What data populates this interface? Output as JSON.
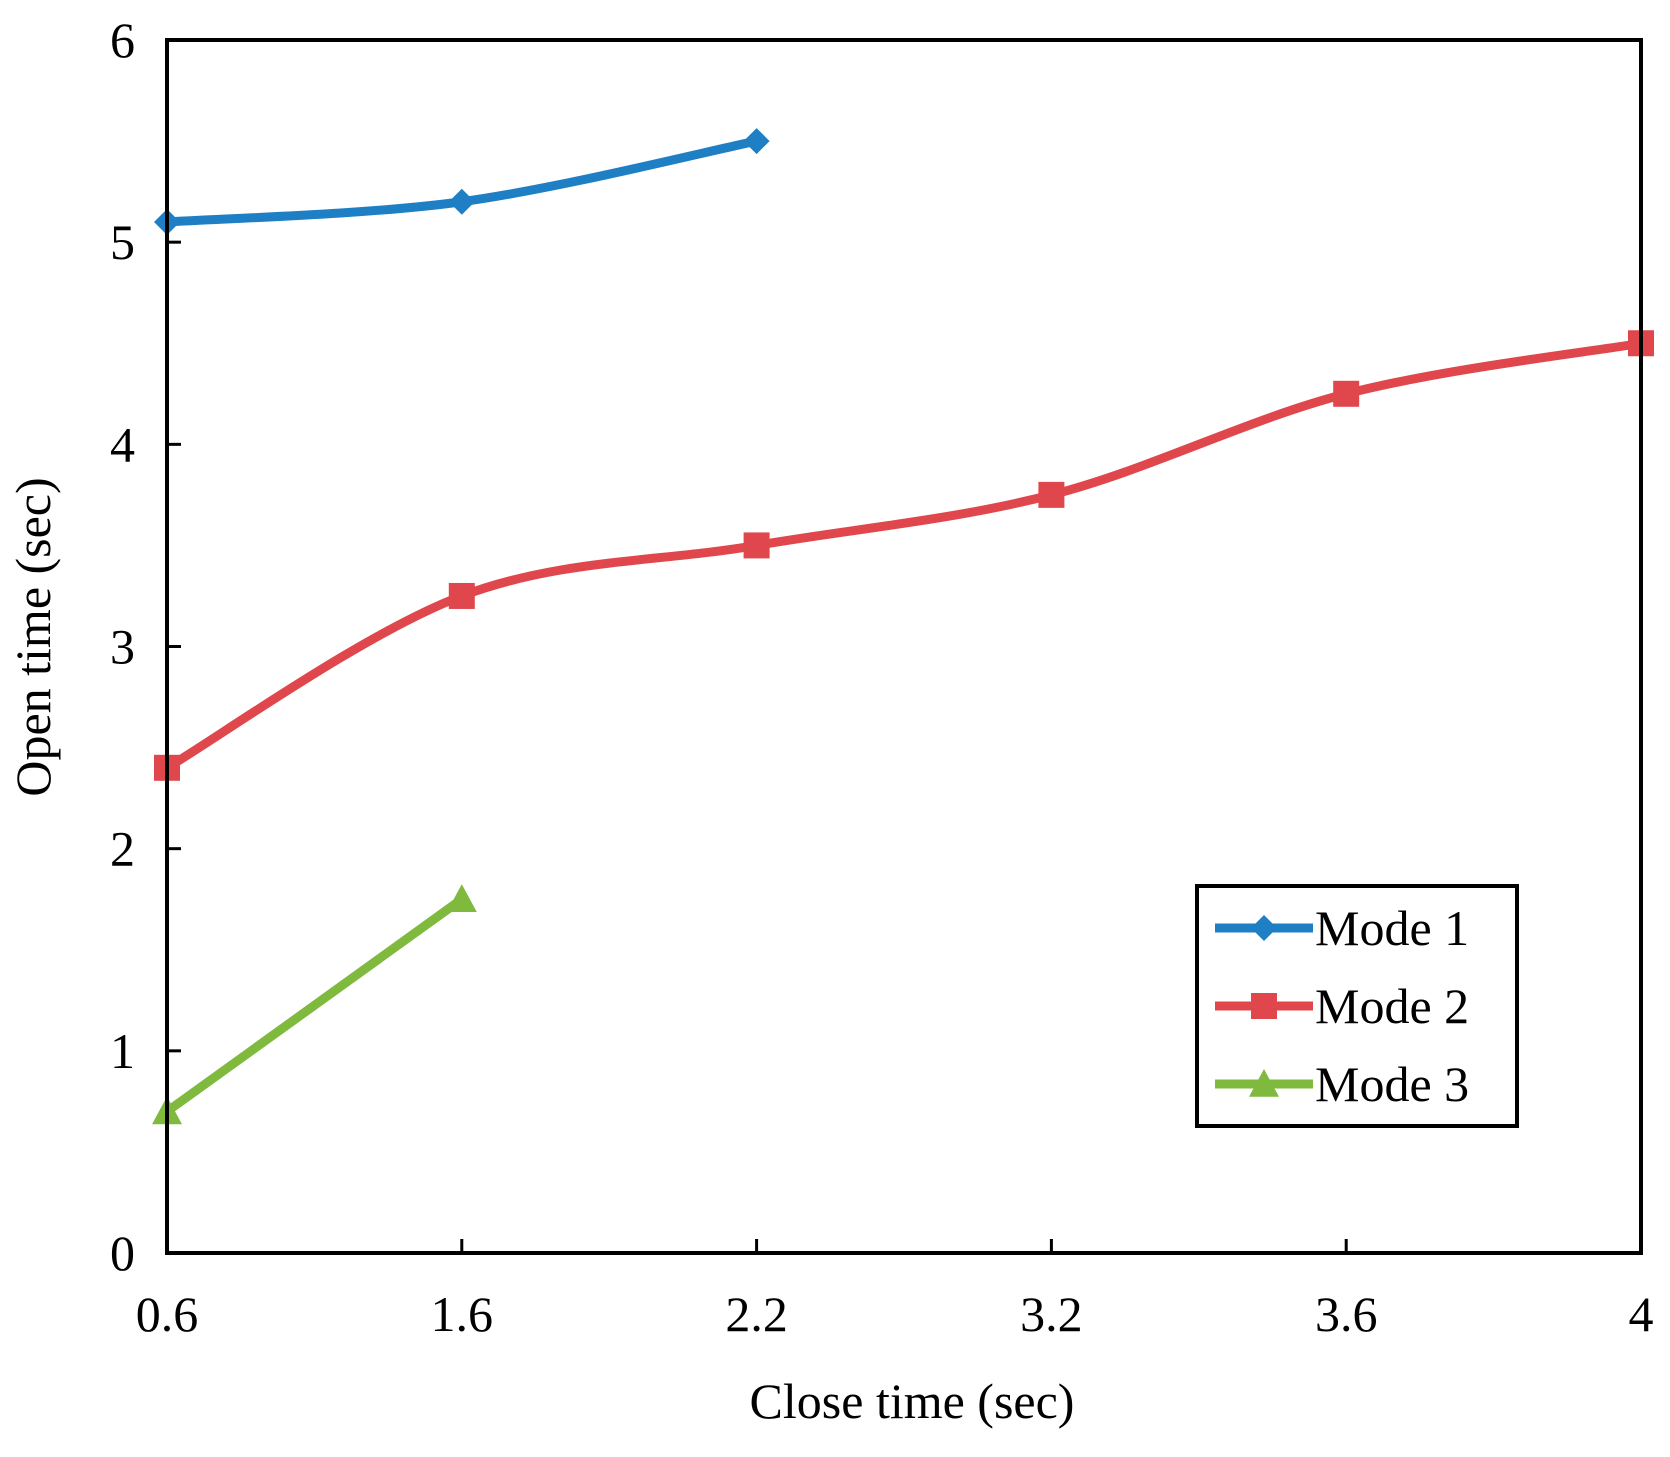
{
  "chart_data": {
    "type": "line",
    "title": "",
    "xlabel": "Close time (sec)",
    "ylabel": "Open time (sec)",
    "categories": [
      "0.6",
      "1.6",
      "2.2",
      "3.2",
      "3.6",
      "4"
    ],
    "ylim": [
      0,
      6
    ],
    "yticks": [
      "0",
      "1",
      "2",
      "3",
      "4",
      "5",
      "6"
    ],
    "grid": false,
    "legend_position": "lower-right",
    "smooth": true,
    "series": [
      {
        "name": "Mode 1",
        "color": "#1f7fc4",
        "marker": "diamond",
        "values": [
          5.1,
          5.2,
          5.5,
          null,
          null,
          null
        ]
      },
      {
        "name": "Mode 2",
        "color": "#e0474c",
        "marker": "square",
        "values": [
          2.4,
          3.25,
          3.5,
          3.75,
          4.25,
          4.5
        ]
      },
      {
        "name": "Mode 3",
        "color": "#7fba3f",
        "marker": "triangle",
        "values": [
          0.7,
          1.75,
          null,
          null,
          null,
          null
        ]
      }
    ]
  }
}
